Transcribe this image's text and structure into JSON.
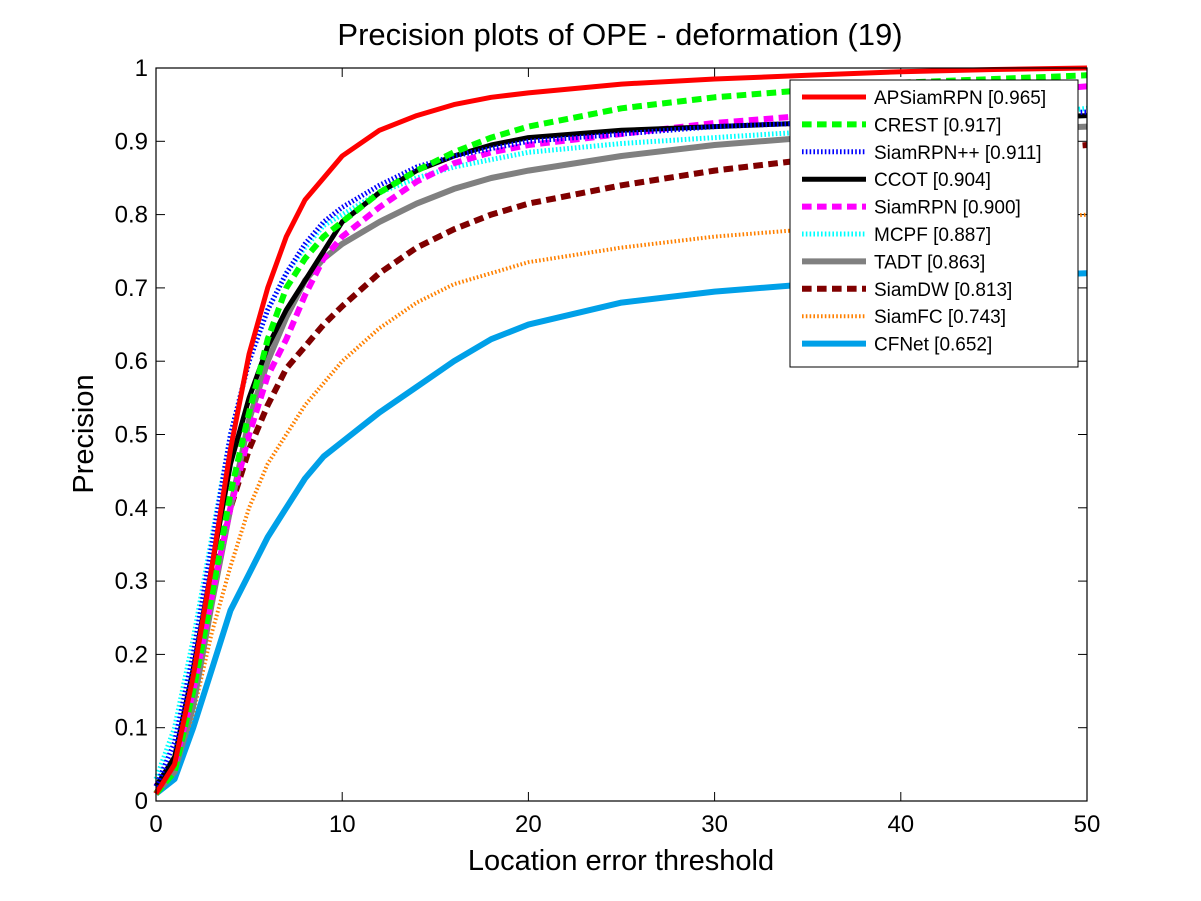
{
  "chart_data": {
    "type": "line",
    "title": "Precision plots of OPE - deformation (19)",
    "xlabel": "Location error threshold",
    "ylabel": "Precision",
    "xlim": [
      0,
      50
    ],
    "ylim": [
      0,
      1
    ],
    "xticks": [
      "0",
      "10",
      "20",
      "30",
      "40",
      "50"
    ],
    "yticks": [
      "0",
      "0.1",
      "0.2",
      "0.3",
      "0.4",
      "0.5",
      "0.6",
      "0.7",
      "0.8",
      "0.9",
      "1"
    ],
    "legend_position": "top-right",
    "grid": false,
    "series": [
      {
        "name": "APSiamRPN [0.965]",
        "color": "#ff0000",
        "style": "solid",
        "width": 5,
        "x": [
          0,
          1,
          2,
          3,
          4,
          5,
          6,
          7,
          8,
          9,
          10,
          12,
          14,
          16,
          18,
          20,
          25,
          30,
          35,
          40,
          45,
          50
        ],
        "y": [
          0.01,
          0.05,
          0.17,
          0.32,
          0.48,
          0.61,
          0.7,
          0.77,
          0.82,
          0.85,
          0.88,
          0.915,
          0.935,
          0.95,
          0.96,
          0.966,
          0.978,
          0.985,
          0.99,
          0.995,
          0.998,
          1.0
        ]
      },
      {
        "name": "CREST [0.917]",
        "color": "#00ff00",
        "style": "dashed",
        "width": 6,
        "x": [
          0,
          1,
          2,
          3,
          4,
          5,
          6,
          7,
          8,
          9,
          10,
          12,
          14,
          16,
          18,
          20,
          25,
          30,
          35,
          40,
          45,
          50
        ],
        "y": [
          0.01,
          0.04,
          0.15,
          0.28,
          0.42,
          0.53,
          0.63,
          0.7,
          0.74,
          0.77,
          0.79,
          0.83,
          0.86,
          0.885,
          0.905,
          0.92,
          0.945,
          0.96,
          0.97,
          0.98,
          0.985,
          0.99
        ]
      },
      {
        "name": "SiamRPN++ [0.911]",
        "color": "#0000ff",
        "style": "dotted",
        "width": 5,
        "x": [
          0,
          1,
          2,
          3,
          4,
          5,
          6,
          7,
          8,
          9,
          10,
          12,
          14,
          16,
          18,
          20,
          25,
          30,
          35,
          40,
          45,
          50
        ],
        "y": [
          0.02,
          0.08,
          0.2,
          0.35,
          0.5,
          0.6,
          0.67,
          0.72,
          0.76,
          0.79,
          0.81,
          0.84,
          0.865,
          0.88,
          0.89,
          0.9,
          0.91,
          0.92,
          0.925,
          0.93,
          0.935,
          0.94
        ]
      },
      {
        "name": "CCOT [0.904]",
        "color": "#000000",
        "style": "solid",
        "width": 5,
        "x": [
          0,
          1,
          2,
          3,
          4,
          5,
          6,
          7,
          8,
          9,
          10,
          12,
          14,
          16,
          18,
          20,
          25,
          30,
          35,
          40,
          45,
          50
        ],
        "y": [
          0.02,
          0.06,
          0.18,
          0.32,
          0.46,
          0.55,
          0.62,
          0.67,
          0.71,
          0.75,
          0.79,
          0.83,
          0.86,
          0.88,
          0.895,
          0.905,
          0.915,
          0.92,
          0.925,
          0.93,
          0.93,
          0.935
        ]
      },
      {
        "name": "SiamRPN [0.900]",
        "color": "#ff00ff",
        "style": "dashed",
        "width": 6,
        "x": [
          0,
          1,
          2,
          3,
          4,
          5,
          6,
          7,
          8,
          9,
          10,
          12,
          14,
          16,
          18,
          20,
          25,
          30,
          35,
          40,
          45,
          50
        ],
        "y": [
          0.02,
          0.05,
          0.15,
          0.28,
          0.4,
          0.5,
          0.58,
          0.63,
          0.69,
          0.74,
          0.77,
          0.81,
          0.845,
          0.87,
          0.885,
          0.895,
          0.91,
          0.925,
          0.935,
          0.95,
          0.965,
          0.975
        ]
      },
      {
        "name": "MCPF [0.887]",
        "color": "#00ffff",
        "style": "dotted",
        "width": 5,
        "x": [
          0,
          1,
          2,
          3,
          4,
          5,
          6,
          7,
          8,
          9,
          10,
          12,
          14,
          16,
          18,
          20,
          25,
          30,
          35,
          40,
          45,
          50
        ],
        "y": [
          0.03,
          0.1,
          0.22,
          0.36,
          0.5,
          0.6,
          0.67,
          0.72,
          0.755,
          0.785,
          0.8,
          0.83,
          0.85,
          0.865,
          0.875,
          0.885,
          0.897,
          0.905,
          0.913,
          0.92,
          0.93,
          0.945
        ]
      },
      {
        "name": "TADT [0.863]",
        "color": "#808080",
        "style": "solid",
        "width": 6,
        "x": [
          0,
          1,
          2,
          3,
          4,
          5,
          6,
          7,
          8,
          9,
          10,
          12,
          14,
          16,
          18,
          20,
          25,
          30,
          35,
          40,
          45,
          50
        ],
        "y": [
          0.01,
          0.04,
          0.13,
          0.27,
          0.4,
          0.52,
          0.6,
          0.66,
          0.71,
          0.74,
          0.76,
          0.79,
          0.815,
          0.835,
          0.85,
          0.86,
          0.88,
          0.895,
          0.905,
          0.91,
          0.915,
          0.92
        ]
      },
      {
        "name": "SiamDW [0.813]",
        "color": "#800000",
        "style": "dashed",
        "width": 6,
        "x": [
          0,
          1,
          2,
          3,
          4,
          5,
          6,
          7,
          8,
          9,
          10,
          12,
          14,
          16,
          18,
          20,
          25,
          30,
          35,
          40,
          45,
          50
        ],
        "y": [
          0.01,
          0.05,
          0.16,
          0.29,
          0.4,
          0.48,
          0.54,
          0.59,
          0.62,
          0.65,
          0.675,
          0.72,
          0.755,
          0.78,
          0.8,
          0.815,
          0.84,
          0.86,
          0.875,
          0.88,
          0.885,
          0.895
        ]
      },
      {
        "name": "SiamFC [0.743]",
        "color": "#ff8000",
        "style": "dotted",
        "width": 4,
        "x": [
          0,
          1,
          2,
          3,
          4,
          5,
          6,
          7,
          8,
          9,
          10,
          12,
          14,
          16,
          18,
          20,
          25,
          30,
          35,
          40,
          45,
          50
        ],
        "y": [
          0.01,
          0.04,
          0.12,
          0.23,
          0.32,
          0.4,
          0.46,
          0.5,
          0.54,
          0.57,
          0.6,
          0.645,
          0.68,
          0.705,
          0.72,
          0.735,
          0.755,
          0.77,
          0.78,
          0.785,
          0.79,
          0.8
        ]
      },
      {
        "name": "CFNet [0.652]",
        "color": "#00a0e8",
        "style": "solid",
        "width": 6,
        "x": [
          0,
          1,
          2,
          3,
          4,
          5,
          6,
          7,
          8,
          9,
          10,
          12,
          14,
          16,
          18,
          20,
          25,
          30,
          35,
          40,
          45,
          50
        ],
        "y": [
          0.01,
          0.03,
          0.1,
          0.18,
          0.26,
          0.31,
          0.36,
          0.4,
          0.44,
          0.47,
          0.49,
          0.53,
          0.565,
          0.6,
          0.63,
          0.65,
          0.68,
          0.695,
          0.705,
          0.712,
          0.716,
          0.72
        ]
      }
    ]
  }
}
